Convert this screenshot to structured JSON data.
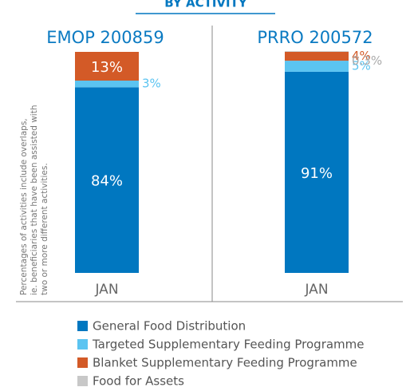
{
  "chart_data": {
    "type": "bar",
    "stacked": true,
    "title": "BY ACTIVITY",
    "note": [
      "Percentages of activities include overlaps,",
      "ie. beneficiaries that have been assisted with",
      "two or more different activities."
    ],
    "panels": [
      "EMOP 200859",
      "PRRO 200572"
    ],
    "categories": [
      "JAN",
      "JAN"
    ],
    "ylim": [
      0,
      100
    ],
    "series": [
      {
        "name": "General Food Distribution",
        "color": "#0077c0",
        "values": [
          84,
          91
        ],
        "value_labels": [
          "84%",
          "91%"
        ]
      },
      {
        "name": "Targeted Supplementary Feeding Programme",
        "color": "#5bc4f1",
        "values": [
          3,
          5
        ],
        "value_labels": [
          "3%",
          "5%"
        ]
      },
      {
        "name": "Blanket Supplementary Feeding Programme",
        "color": "#d35a27",
        "values": [
          13,
          4
        ],
        "value_labels": [
          "13%",
          "4%"
        ]
      },
      {
        "name": "Food for Assets",
        "color": "#c8c8c8",
        "values": [
          null,
          0.3
        ],
        "value_labels": [
          null,
          "0.3%"
        ]
      }
    ]
  }
}
